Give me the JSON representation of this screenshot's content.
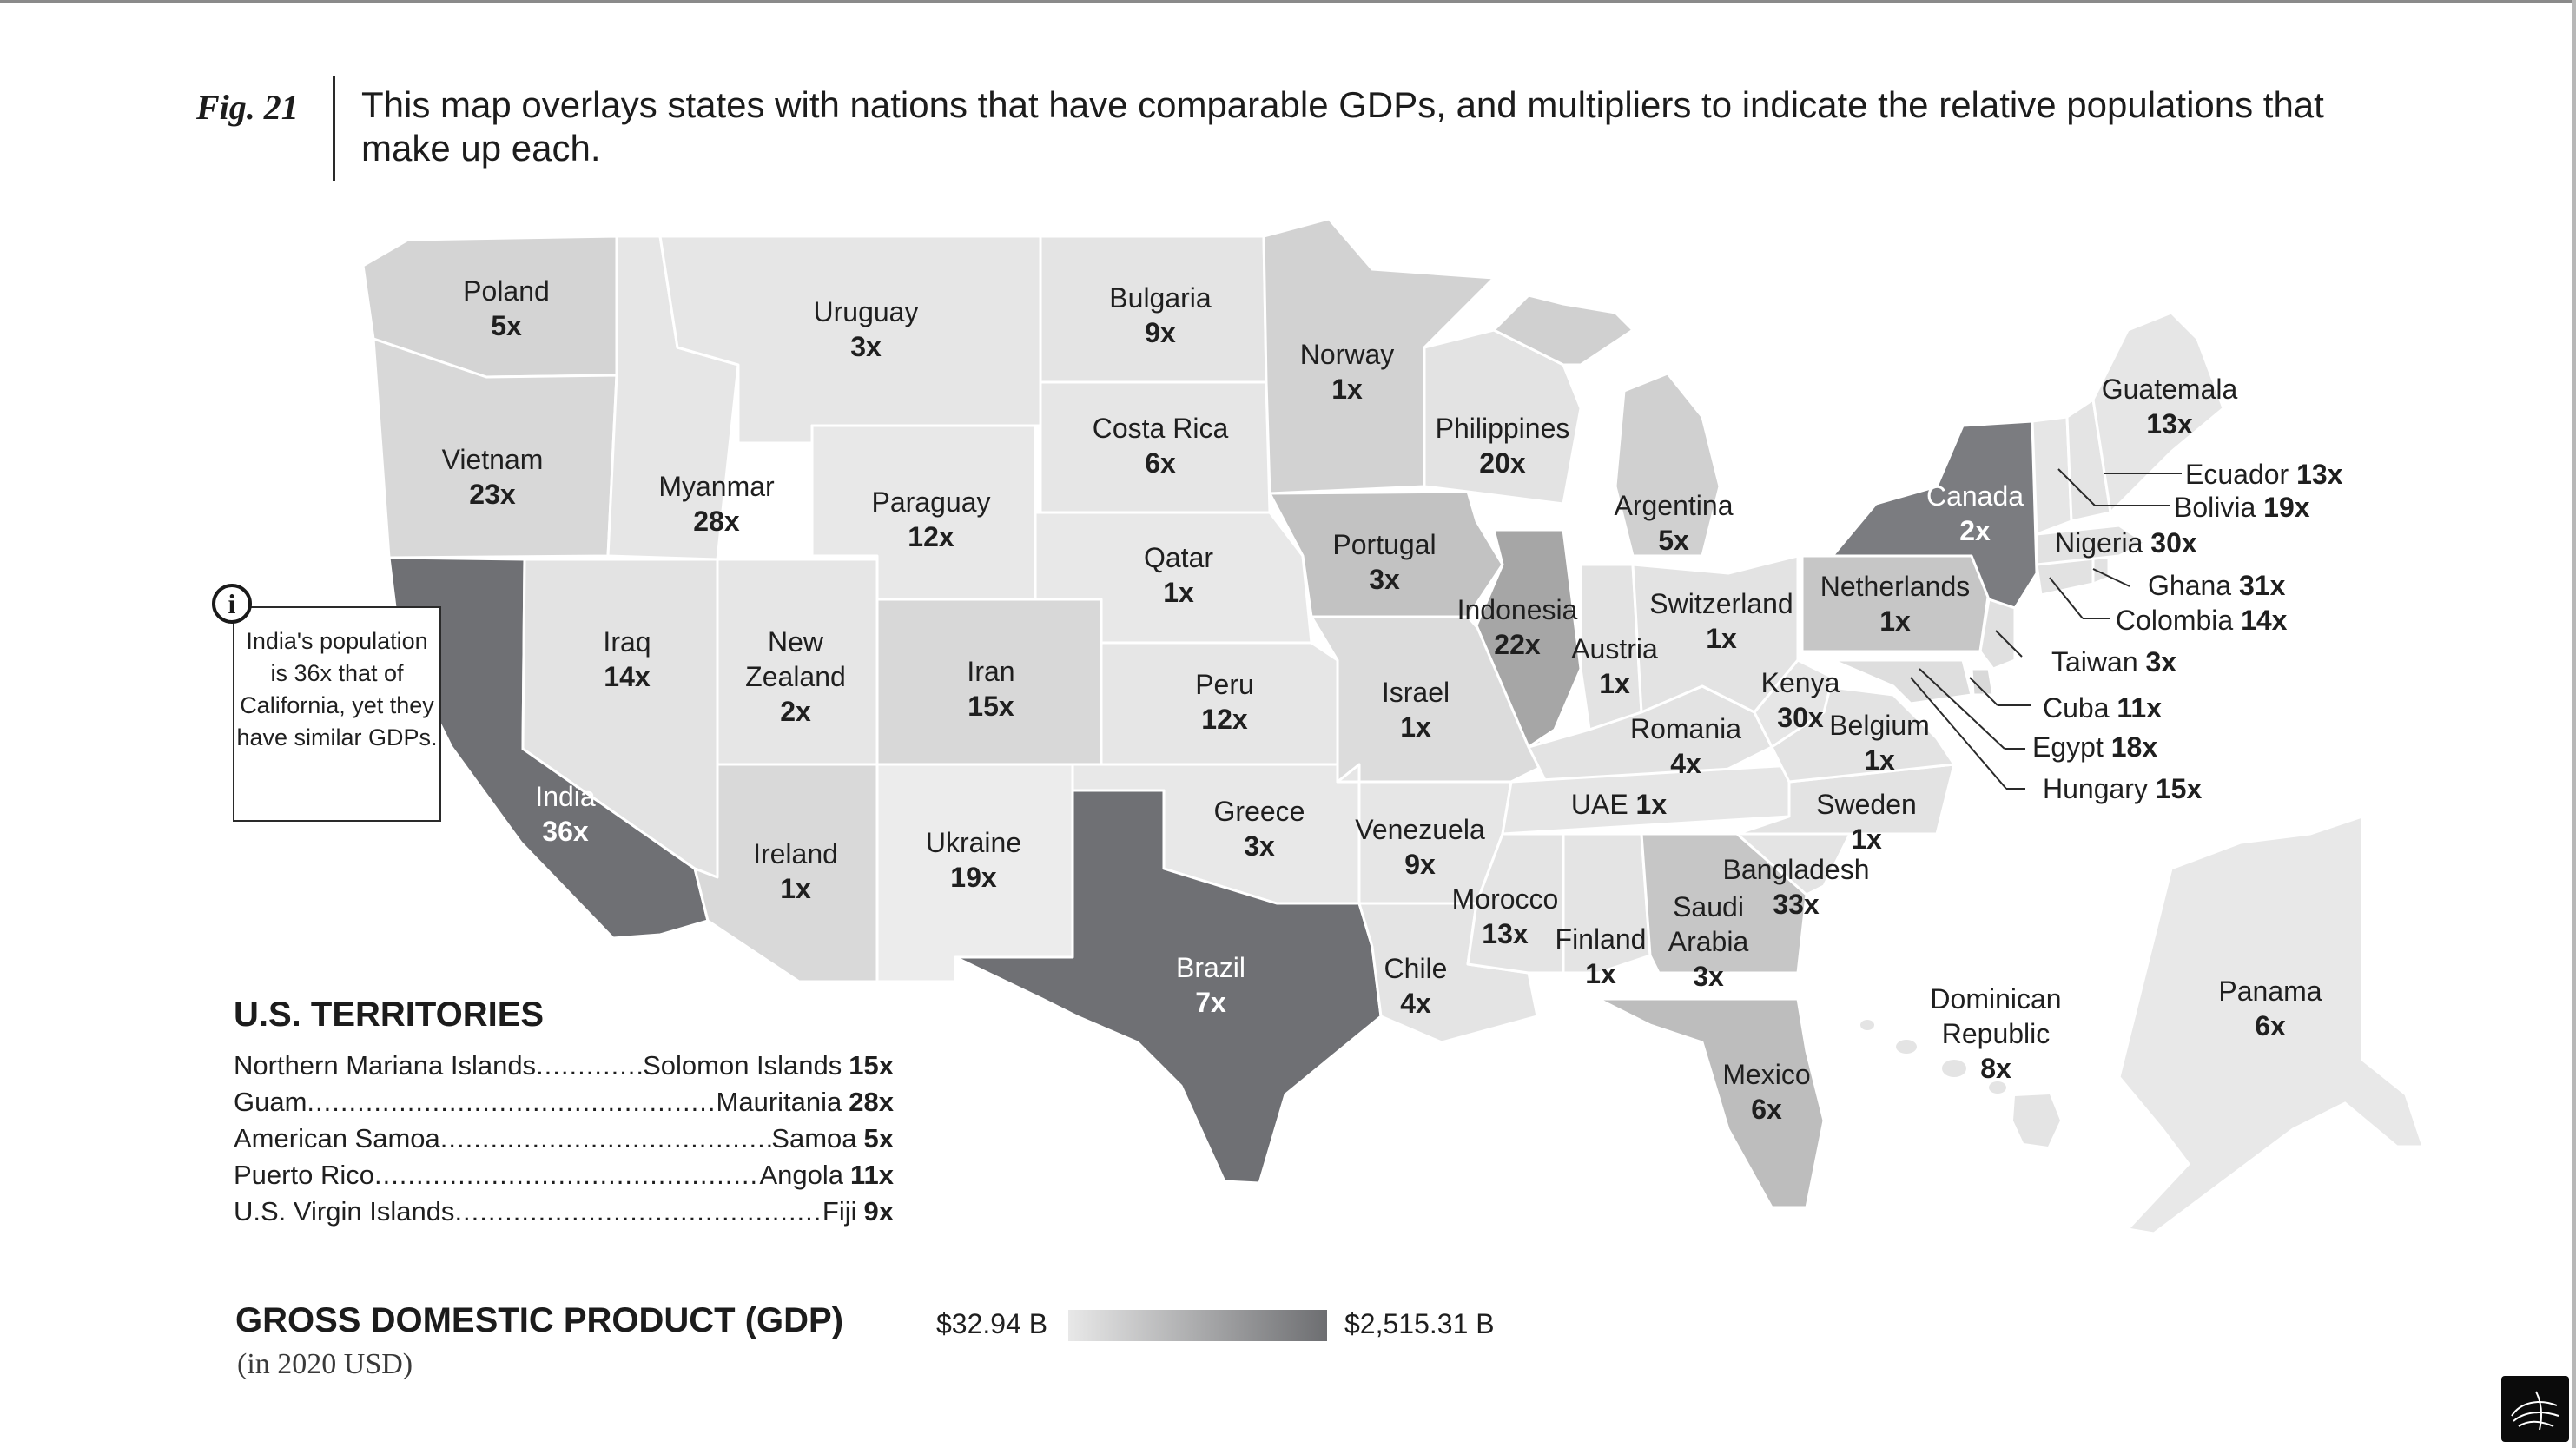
{
  "figure": {
    "label": "Fig. 21",
    "caption": "This map overlays states with nations that have comparable GDPs, and multipliers to indicate the relative populations that make up each."
  },
  "callout": {
    "text": "India's population is 36x that of California, yet they have similar GDPs.",
    "icon": "info-icon"
  },
  "map_labels": [
    {
      "country": "Poland",
      "pop": "5x"
    },
    {
      "country": "Vietnam",
      "pop": "23x"
    },
    {
      "country": "India",
      "pop": "36x"
    },
    {
      "country": "Uruguay",
      "pop": "3x"
    },
    {
      "country": "Myanmar",
      "pop": "28x"
    },
    {
      "country": "Iraq",
      "pop": "14x"
    },
    {
      "country": "New Zealand",
      "pop": "2x"
    },
    {
      "country": "Ireland",
      "pop": "1x"
    },
    {
      "country": "Bulgaria",
      "pop": "9x"
    },
    {
      "country": "Costa Rica",
      "pop": "6x"
    },
    {
      "country": "Paraguay",
      "pop": "12x"
    },
    {
      "country": "Iran",
      "pop": "15x"
    },
    {
      "country": "Ukraine",
      "pop": "19x"
    },
    {
      "country": "Qatar",
      "pop": "1x"
    },
    {
      "country": "Peru",
      "pop": "12x"
    },
    {
      "country": "Greece",
      "pop": "3x"
    },
    {
      "country": "Brazil",
      "pop": "7x"
    },
    {
      "country": "Norway",
      "pop": "1x"
    },
    {
      "country": "Philippines",
      "pop": "20x"
    },
    {
      "country": "Portugal",
      "pop": "3x"
    },
    {
      "country": "Israel",
      "pop": "1x"
    },
    {
      "country": "Indonesia",
      "pop": "22x"
    },
    {
      "country": "Venezuela",
      "pop": "9x"
    },
    {
      "country": "Chile",
      "pop": "4x"
    },
    {
      "country": "Morocco",
      "pop": "13x"
    },
    {
      "country": "Argentina",
      "pop": "5x"
    },
    {
      "country": "Austria",
      "pop": "1x"
    },
    {
      "country": "Switzerland",
      "pop": "1x"
    },
    {
      "country": "Romania",
      "pop": "4x"
    },
    {
      "country": "Kenya",
      "pop": "30x"
    },
    {
      "country": "UAE",
      "pop": "1x"
    },
    {
      "country": "Finland",
      "pop": "1x"
    },
    {
      "country": "Saudi Arabia",
      "pop": "3x"
    },
    {
      "country": "Bangladesh",
      "pop": "33x"
    },
    {
      "country": "Sweden",
      "pop": "1x"
    },
    {
      "country": "Belgium",
      "pop": "1x"
    },
    {
      "country": "Netherlands",
      "pop": "1x"
    },
    {
      "country": "Canada",
      "pop": "2x"
    },
    {
      "country": "Guatemala",
      "pop": "13x"
    },
    {
      "country": "Mexico",
      "pop": "6x"
    },
    {
      "country": "Dominican Republic",
      "pop": "8x"
    },
    {
      "country": "Panama",
      "pop": "6x"
    }
  ],
  "side_labels": [
    {
      "country": "Ecuador",
      "pop": "13x"
    },
    {
      "country": "Bolivia",
      "pop": "19x"
    },
    {
      "country": "Nigeria",
      "pop": "30x"
    },
    {
      "country": "Ghana",
      "pop": "31x"
    },
    {
      "country": "Colombia",
      "pop": "14x"
    },
    {
      "country": "Taiwan",
      "pop": "3x"
    },
    {
      "country": "Cuba",
      "pop": "11x"
    },
    {
      "country": "Egypt",
      "pop": "18x"
    },
    {
      "country": "Hungary",
      "pop": "15x"
    }
  ],
  "territories": {
    "title": "U.S. TERRITORIES",
    "items": [
      {
        "name": "Northern Mariana Islands",
        "country": "Solomon Islands",
        "pop": "15x"
      },
      {
        "name": "Guam",
        "country": "Mauritania",
        "pop": "28x"
      },
      {
        "name": "American Samoa",
        "country": "Samoa",
        "pop": "5x"
      },
      {
        "name": "Puerto Rico",
        "country": "Angola",
        "pop": "11x"
      },
      {
        "name": "U.S. Virgin Islands",
        "country": "Fiji",
        "pop": "9x"
      }
    ]
  },
  "legend": {
    "title": "GROSS DOMESTIC PRODUCT (GDP)",
    "subtitle": "(in 2020 USD)",
    "min_label": "$32.94 B",
    "max_label": "$2,515.31 B",
    "color_low": "#e8e8e8",
    "color_high": "#6d6e71"
  }
}
